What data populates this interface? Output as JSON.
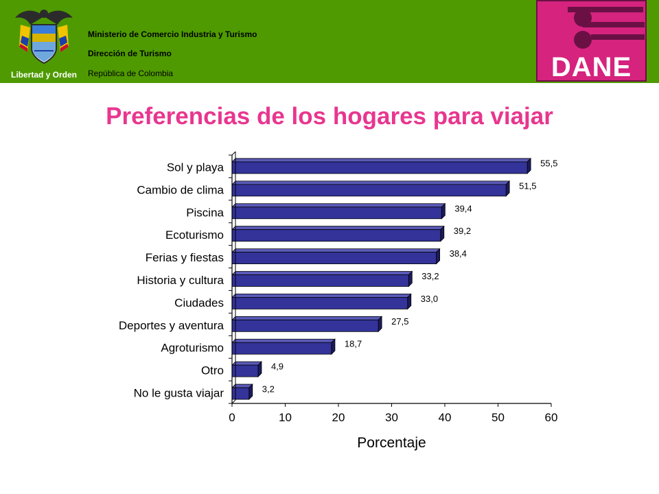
{
  "header": {
    "crest_caption": "Libertad y Orden",
    "org_lines": [
      "Ministerio de Comercio Industria y Turismo",
      "Dirección de Turismo",
      "República de Colombia"
    ],
    "logo_text": "DANE",
    "background_color": "#4f9a00",
    "logo_color": "#d5237e"
  },
  "page_title": "Preferencias de los hogares para viajar",
  "chart_data": {
    "type": "bar",
    "orientation": "horizontal",
    "categories": [
      "Sol y playa",
      "Cambio de clima",
      "Piscina",
      "Ecoturismo",
      "Ferias y fiestas",
      "Historia y cultura",
      "Ciudades",
      "Deportes y aventura",
      "Agroturismo",
      "Otro",
      "No le gusta viajar"
    ],
    "values": [
      55.5,
      51.5,
      39.4,
      39.2,
      38.4,
      33.2,
      33.0,
      27.5,
      18.7,
      4.9,
      3.2
    ],
    "data_labels": [
      "55,5",
      "51,5",
      "39,4",
      "39,2",
      "38,4",
      "33,2",
      "33,0",
      "27,5",
      "18,7",
      "4,9",
      "3,2"
    ],
    "xlabel": "Porcentaje",
    "ylabel": "",
    "xlim": [
      0,
      60
    ],
    "x_ticks": [
      "0",
      "10",
      "20",
      "30",
      "40",
      "50",
      "60"
    ],
    "bar_color": "#33339a",
    "grid": false,
    "legend": "none"
  }
}
